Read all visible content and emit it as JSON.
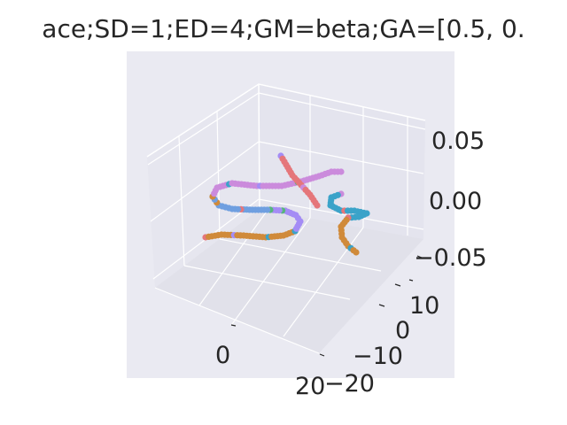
{
  "figure": {
    "title": "ace;SD=1;ED=4;GM=beta;GA=[0.5, 0.",
    "background": "#ffffff",
    "axes_background": "#eaeaf2",
    "pane_color": "#e3e3ec",
    "grid_color": "#ffffff"
  },
  "chart_data": {
    "type": "scatter",
    "projection": "3d",
    "title": "ace;SD=1;ED=4;GM=beta;GA=[0.5, 0.",
    "grid": true,
    "x_ticks": [
      "0",
      "20"
    ],
    "y_ticks": [
      "−20",
      "−10",
      "0",
      "10"
    ],
    "z_ticks": [
      "−0.05",
      "0.00",
      "0.05"
    ],
    "xlim": [
      -20,
      25
    ],
    "ylim": [
      -22,
      18
    ],
    "zlim": [
      -0.07,
      0.07
    ],
    "series_colors": [
      "#e5767a",
      "#3ba3c9",
      "#56b77a",
      "#d08a3a",
      "#a48cf5",
      "#cb8bdc"
    ],
    "trajectories": [
      {
        "color": "#d08a3a",
        "points": [
          [
            232,
            268
          ],
          [
            250,
            265
          ],
          [
            275,
            266
          ],
          [
            300,
            268
          ],
          [
            320,
            266
          ],
          [
            333,
            261
          ]
        ]
      },
      {
        "color": "#a48cf5",
        "points": [
          [
            333,
            261
          ],
          [
            339,
            250
          ],
          [
            334,
            243
          ],
          [
            322,
            238
          ],
          [
            305,
            237
          ]
        ]
      },
      {
        "color": "#6f9fe0",
        "points": [
          [
            305,
            237
          ],
          [
            285,
            237
          ],
          [
            262,
            236
          ],
          [
            247,
            232
          ],
          [
            240,
            222
          ]
        ]
      },
      {
        "color": "#cb8bdc",
        "points": [
          [
            240,
            222
          ],
          [
            245,
            212
          ],
          [
            262,
            207
          ],
          [
            290,
            210
          ],
          [
            318,
            210
          ],
          [
            340,
            205
          ],
          [
            360,
            199
          ],
          [
            374,
            194
          ],
          [
            385,
            194
          ]
        ]
      },
      {
        "color": "#e5767a",
        "points": [
          [
            317,
            176
          ],
          [
            323,
            186
          ],
          [
            330,
            198
          ],
          [
            340,
            209
          ],
          [
            350,
            220
          ],
          [
            358,
            232
          ]
        ]
      },
      {
        "color": "#3ba3c9",
        "points": [
          [
            385,
            219
          ],
          [
            374,
            223
          ],
          [
            373,
            232
          ],
          [
            385,
            238
          ],
          [
            400,
            238
          ],
          [
            414,
            241
          ],
          [
            405,
            245
          ],
          [
            393,
            246
          ]
        ]
      },
      {
        "color": "#d08a3a",
        "points": [
          [
            393,
            246
          ],
          [
            385,
            256
          ],
          [
            386,
            268
          ],
          [
            393,
            278
          ],
          [
            402,
            285
          ]
        ]
      }
    ]
  }
}
